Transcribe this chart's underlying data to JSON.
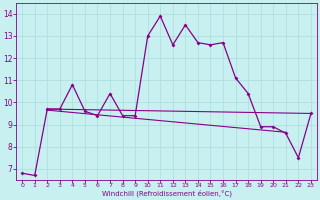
{
  "bg_color": "#c8f0f0",
  "line_color": "#880088",
  "grid_color": "#aadddd",
  "xlabel": "Windchill (Refroidissement éolien,°C)",
  "xticks": [
    0,
    1,
    2,
    3,
    4,
    5,
    6,
    7,
    8,
    9,
    10,
    11,
    12,
    13,
    14,
    15,
    16,
    17,
    18,
    19,
    20,
    21,
    22,
    23
  ],
  "yticks": [
    7,
    8,
    9,
    10,
    11,
    12,
    13,
    14
  ],
  "ylim": [
    6.5,
    14.5
  ],
  "xlim": [
    -0.5,
    23.5
  ],
  "main_series_x": [
    0,
    1,
    2,
    3,
    4,
    5,
    6,
    7,
    8,
    9,
    10,
    11,
    12,
    13,
    14,
    15,
    16,
    17,
    18,
    19,
    20,
    21,
    22,
    23
  ],
  "main_series_y": [
    6.8,
    6.7,
    9.7,
    9.7,
    10.8,
    9.6,
    9.4,
    10.4,
    9.4,
    9.4,
    13.0,
    13.9,
    12.6,
    13.5,
    12.7,
    12.6,
    12.7,
    11.1,
    10.4,
    8.9,
    8.9,
    8.6,
    7.5,
    9.5
  ],
  "flat_line1_x": [
    2,
    23
  ],
  "flat_line1_y": [
    9.7,
    9.5
  ],
  "flat_line2_x": [
    2,
    21
  ],
  "flat_line2_y": [
    9.65,
    8.65
  ]
}
